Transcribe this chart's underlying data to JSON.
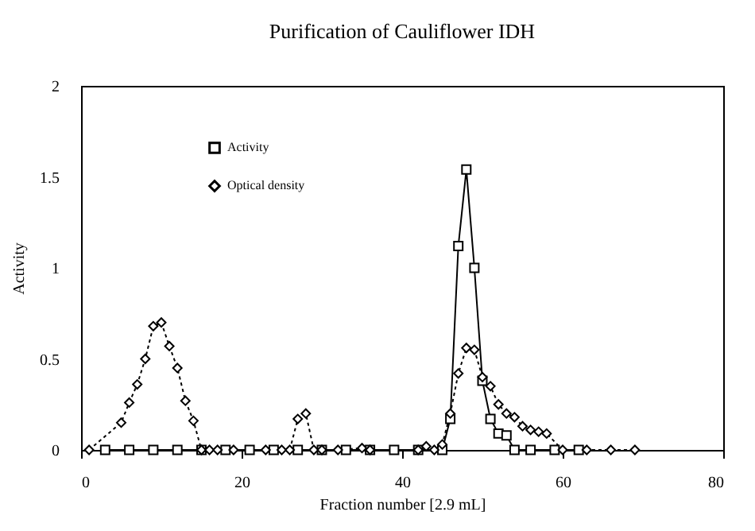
{
  "chart_data": {
    "type": "line",
    "title": "Purification of Cauliflower IDH",
    "xlabel": "Fraction number [2.9 mL]",
    "ylabel": "Activity",
    "xlim": [
      0,
      80
    ],
    "xticks": [
      0,
      20,
      40,
      60,
      80
    ],
    "ylim": [
      0,
      2
    ],
    "yticks": [
      0,
      0.5,
      1,
      1.5,
      2
    ],
    "legend": "top left",
    "grid": false,
    "series": [
      {
        "name": "Activity",
        "color": "#000000",
        "marker": "square",
        "line_style": "solid",
        "x": [
          3,
          6,
          9,
          12,
          15,
          18,
          21,
          24,
          27,
          30,
          33,
          36,
          39,
          42,
          45,
          46,
          47,
          48,
          49,
          50,
          51,
          52,
          53,
          54,
          56,
          59,
          62
        ],
        "values": [
          0,
          0,
          0,
          0,
          0,
          0,
          0,
          0,
          0,
          0,
          0,
          0,
          0,
          0,
          0,
          0.17,
          1.12,
          1.54,
          1.0,
          0.38,
          0.17,
          0.09,
          0.08,
          0,
          0,
          0,
          0
        ]
      },
      {
        "name": "Optical density",
        "color": "#000000",
        "marker": "diamond",
        "line_style": "dotted",
        "x": [
          1,
          5,
          6,
          7,
          8,
          9,
          10,
          11,
          12,
          13,
          14,
          15,
          16,
          17,
          19,
          23,
          25,
          26,
          27,
          28,
          29,
          30,
          32,
          35,
          36,
          42,
          43,
          44,
          45,
          46,
          47,
          48,
          49,
          50,
          51,
          52,
          53,
          54,
          55,
          56,
          57,
          58,
          60,
          63,
          66,
          69
        ],
        "values": [
          0,
          0.15,
          0.26,
          0.36,
          0.5,
          0.68,
          0.7,
          0.57,
          0.45,
          0.27,
          0.16,
          0,
          0,
          0,
          0,
          0,
          0,
          0,
          0.17,
          0.2,
          0,
          0,
          0,
          0.01,
          0,
          0,
          0.02,
          0,
          0.03,
          0.2,
          0.42,
          0.56,
          0.55,
          0.4,
          0.35,
          0.25,
          0.2,
          0.18,
          0.13,
          0.11,
          0.1,
          0.09,
          0,
          0,
          0,
          0
        ]
      }
    ]
  }
}
